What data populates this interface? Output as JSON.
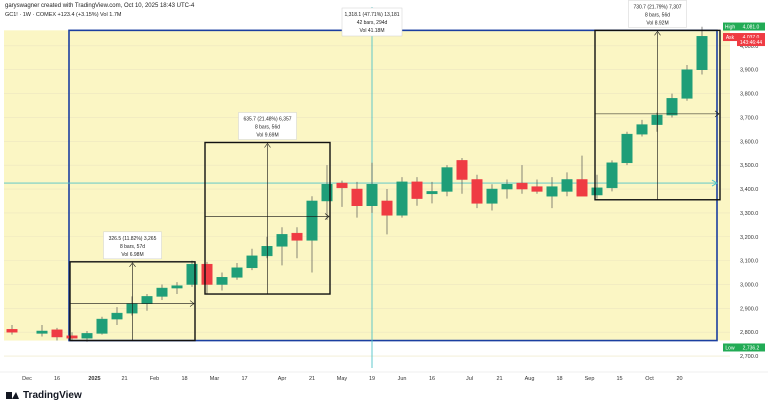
{
  "header": {
    "credit": "garyswagner created with TradingView.com, Oct 10, 2025 18:43 UTC-4",
    "symbol_line": "GC1! · 1W · COMEX  +123.4 (+3.15%)  Vol 1.7M"
  },
  "brand": {
    "name": "TradingView"
  },
  "colors": {
    "up": "#1f9e78",
    "down": "#ef3b43",
    "range_box": "#1b3fa0",
    "band": "#fbf6c4",
    "measure_box": "#111111",
    "hline": "#4fc3c8",
    "vline": "#4fc3c8",
    "high_label": "#22ab55",
    "ask_label": "#ef3b43",
    "low_label": "#22ab55"
  },
  "chart_data": {
    "type": "candlestick",
    "yaxis": {
      "ticks": [
        2700,
        2800,
        2900,
        3000,
        3100,
        3200,
        3300,
        3400,
        3500,
        3600,
        3700,
        3800,
        3900,
        4000
      ],
      "tick_labels": [
        "2,700.0",
        "2,800.0",
        "2,900.0",
        "3,000.0",
        "3,100.0",
        "3,200.0",
        "3,300.0",
        "3,400.0",
        "3,500.0",
        "3,600.0",
        "3,700.0",
        "3,800.0",
        "3,900.0",
        "4,000.0"
      ],
      "ylim": [
        2650,
        4100
      ]
    },
    "xaxis": {
      "labels": [
        "Dec",
        "16",
        "2025",
        "21",
        "Feb",
        "18",
        "Mar",
        "17",
        "Apr",
        "21",
        "May",
        "19",
        "Jun",
        "16",
        "Jul",
        "21",
        "Aug",
        "18",
        "Sep",
        "15",
        "Oct",
        "20"
      ],
      "label_week": [
        -4,
        -2,
        0.5,
        2.5,
        4.5,
        6.5,
        8.5,
        10.5,
        13,
        15,
        17,
        19,
        21,
        23,
        25.5,
        27.5,
        29.5,
        31.5,
        33.5,
        35.5,
        37.5,
        39.5
      ],
      "bold": [
        "2025"
      ],
      "week_range": [
        -5,
        41
      ]
    },
    "candles": [
      {
        "w": -5,
        "o": 2812,
        "h": 2830,
        "l": 2790,
        "c": 2800
      },
      {
        "w": -3,
        "o": 2795,
        "h": 2830,
        "l": 2782,
        "c": 2805
      },
      {
        "w": -2,
        "o": 2810,
        "h": 2818,
        "l": 2765,
        "c": 2780
      },
      {
        "w": -1,
        "o": 2785,
        "h": 2800,
        "l": 2762,
        "c": 2775
      },
      {
        "w": 0,
        "o": 2775,
        "h": 2805,
        "l": 2760,
        "c": 2795
      },
      {
        "w": 1,
        "o": 2795,
        "h": 2865,
        "l": 2790,
        "c": 2855
      },
      {
        "w": 2,
        "o": 2855,
        "h": 2905,
        "l": 2830,
        "c": 2880
      },
      {
        "w": 3,
        "o": 2880,
        "h": 2950,
        "l": 2870,
        "c": 2920
      },
      {
        "w": 4,
        "o": 2920,
        "h": 2960,
        "l": 2890,
        "c": 2950
      },
      {
        "w": 5,
        "o": 2950,
        "h": 3000,
        "l": 2935,
        "c": 2985
      },
      {
        "w": 6,
        "o": 2985,
        "h": 3010,
        "l": 2960,
        "c": 2995
      },
      {
        "w": 7,
        "o": 3000,
        "h": 3100,
        "l": 2990,
        "c": 3085
      },
      {
        "w": 8,
        "o": 3085,
        "h": 3095,
        "l": 2960,
        "c": 3000
      },
      {
        "w": 9,
        "o": 3000,
        "h": 3050,
        "l": 2975,
        "c": 3030
      },
      {
        "w": 10,
        "o": 3030,
        "h": 3090,
        "l": 3020,
        "c": 3070
      },
      {
        "w": 11,
        "o": 3070,
        "h": 3150,
        "l": 3060,
        "c": 3120
      },
      {
        "w": 12,
        "o": 3120,
        "h": 3200,
        "l": 3110,
        "c": 3160
      },
      {
        "w": 13,
        "o": 3160,
        "h": 3240,
        "l": 3080,
        "c": 3210
      },
      {
        "w": 14,
        "o": 3215,
        "h": 3240,
        "l": 3110,
        "c": 3185
      },
      {
        "w": 15,
        "o": 3185,
        "h": 3370,
        "l": 3050,
        "c": 3350
      },
      {
        "w": 16,
        "o": 3350,
        "h": 3500,
        "l": 3270,
        "c": 3420
      },
      {
        "w": 17,
        "o": 3425,
        "h": 3435,
        "l": 3325,
        "c": 3405
      },
      {
        "w": 18,
        "o": 3400,
        "h": 3430,
        "l": 3280,
        "c": 3330
      },
      {
        "w": 19,
        "o": 3330,
        "h": 3510,
        "l": 3300,
        "c": 3420
      },
      {
        "w": 20,
        "o": 3350,
        "h": 3400,
        "l": 3210,
        "c": 3290
      },
      {
        "w": 21,
        "o": 3290,
        "h": 3450,
        "l": 3280,
        "c": 3430
      },
      {
        "w": 22,
        "o": 3430,
        "h": 3450,
        "l": 3330,
        "c": 3360
      },
      {
        "w": 23,
        "o": 3380,
        "h": 3430,
        "l": 3340,
        "c": 3390
      },
      {
        "w": 24,
        "o": 3390,
        "h": 3500,
        "l": 3370,
        "c": 3490
      },
      {
        "w": 25,
        "o": 3520,
        "h": 3530,
        "l": 3380,
        "c": 3440
      },
      {
        "w": 26,
        "o": 3440,
        "h": 3460,
        "l": 3320,
        "c": 3340
      },
      {
        "w": 27,
        "o": 3340,
        "h": 3420,
        "l": 3310,
        "c": 3400
      },
      {
        "w": 28,
        "o": 3400,
        "h": 3440,
        "l": 3360,
        "c": 3420
      },
      {
        "w": 29,
        "o": 3425,
        "h": 3500,
        "l": 3380,
        "c": 3400
      },
      {
        "w": 30,
        "o": 3410,
        "h": 3440,
        "l": 3380,
        "c": 3390
      },
      {
        "w": 31,
        "o": 3370,
        "h": 3450,
        "l": 3320,
        "c": 3410
      },
      {
        "w": 32,
        "o": 3390,
        "h": 3470,
        "l": 3370,
        "c": 3440
      },
      {
        "w": 33,
        "o": 3440,
        "h": 3540,
        "l": 3380,
        "c": 3370
      },
      {
        "w": 34,
        "o": 3375,
        "h": 3460,
        "l": 3360,
        "c": 3405
      },
      {
        "w": 35,
        "o": 3405,
        "h": 3520,
        "l": 3390,
        "c": 3510
      },
      {
        "w": 36,
        "o": 3510,
        "h": 3640,
        "l": 3500,
        "c": 3630
      },
      {
        "w": 37,
        "o": 3630,
        "h": 3690,
        "l": 3620,
        "c": 3670
      },
      {
        "w": 38,
        "o": 3670,
        "h": 3720,
        "l": 3640,
        "c": 3710
      },
      {
        "w": 39,
        "o": 3710,
        "h": 3800,
        "l": 3700,
        "c": 3780
      },
      {
        "w": 40,
        "o": 3780,
        "h": 3920,
        "l": 3770,
        "c": 3900
      },
      {
        "w": 41,
        "o": 3900,
        "h": 4080,
        "l": 3880,
        "c": 4040
      }
    ],
    "price_labels": [
      {
        "text": "High",
        "value": "4,081.0",
        "price": 4081,
        "kind": "high"
      },
      {
        "text": "Ask",
        "value": "4,037.0",
        "price": 4037,
        "kind": "ask"
      },
      {
        "text": "",
        "value": "143:46:44",
        "price": 4016,
        "kind": "countdown"
      },
      {
        "text": "Low",
        "value": "2,736.2",
        "price": 2736,
        "kind": "low"
      }
    ],
    "annotations": {
      "range_box": {
        "w_start": -1,
        "w_end": 42,
        "p_top": 4065,
        "p_bottom": 2765
      },
      "band": {
        "p_top": 4065,
        "p_bottom": 2765
      },
      "hline": {
        "price": 3425
      },
      "vline": {
        "w": 19
      },
      "vline_label": {
        "lines": [
          "1,318.1 (47.71%) 13,181",
          "42 bars, 294d",
          "Vol 41.18M"
        ],
        "w": 19
      },
      "measures": [
        {
          "w_start": -1,
          "w_end": 7,
          "p_top": 3095,
          "p_bottom": 2765,
          "mid_price": 2920,
          "lines": [
            "326.5 (11.82%) 3,265",
            "8 bars, 57d",
            "Vol 6.98M"
          ]
        },
        {
          "w_start": 8,
          "w_end": 16,
          "p_top": 3595,
          "p_bottom": 2960,
          "mid_price": 3285,
          "lines": [
            "635.7 (21.48%) 6,357",
            "8 bars, 56d",
            "Vol 9.69M"
          ]
        },
        {
          "w_start": 34,
          "w_end": 42,
          "p_top": 4065,
          "p_bottom": 3355,
          "mid_price": 3715,
          "lines": [
            "730.7 (21.79%) 7,307",
            "8 bars, 56d",
            "Vol 8.92M"
          ]
        }
      ]
    }
  }
}
